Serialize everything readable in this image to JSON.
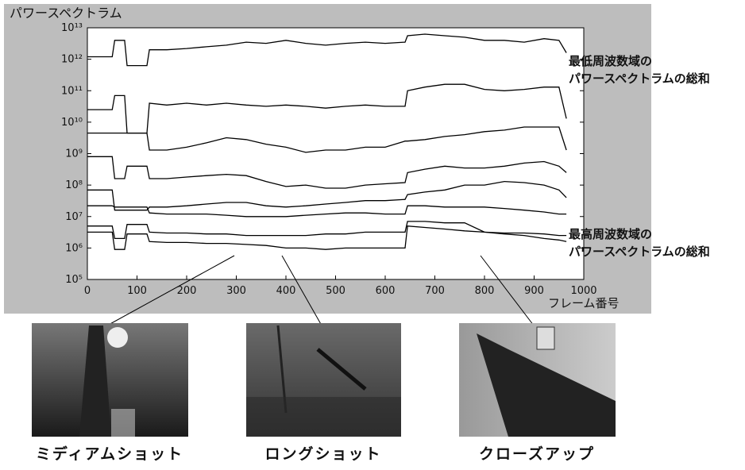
{
  "chart_data": {
    "type": "line",
    "title": "パワースペクトラム",
    "x_label": "フレーム番号",
    "log_scale": true,
    "xlim": [
      0,
      1000
    ],
    "ylim": [
      100000.0,
      10000000000000.0
    ],
    "xticks": [
      0,
      100,
      200,
      300,
      400,
      500,
      600,
      700,
      800,
      900,
      1000
    ],
    "yticks": [
      {
        "value": 100000.0,
        "label": "10⁵"
      },
      {
        "value": 1000000.0,
        "label": "10⁶"
      },
      {
        "value": 10000000.0,
        "label": "10⁷"
      },
      {
        "value": 100000000.0,
        "label": "10⁸"
      },
      {
        "value": 1000000000.0,
        "label": "10⁹"
      },
      {
        "value": 10000000000.0,
        "label": "10¹⁰"
      },
      {
        "value": 100000000000.0,
        "label": "10¹¹"
      },
      {
        "value": 1000000000000.0,
        "label": "10¹²"
      },
      {
        "value": 10000000000000.0,
        "label": "10¹³"
      }
    ],
    "x": [
      0,
      50,
      55,
      75,
      80,
      120,
      125,
      160,
      200,
      240,
      280,
      320,
      360,
      400,
      440,
      480,
      520,
      560,
      600,
      640,
      645,
      680,
      720,
      760,
      800,
      840,
      880,
      920,
      950,
      965
    ],
    "series": [
      {
        "color": "#000",
        "values": [
          1200000000000.0,
          1200000000000.0,
          4000000000000.0,
          4000000000000.0,
          630000000000.0,
          630000000000.0,
          2000000000000.0,
          2000000000000.0,
          2200000000000.0,
          2500000000000.0,
          2800000000000.0,
          3500000000000.0,
          3200000000000.0,
          4000000000000.0,
          3200000000000.0,
          2800000000000.0,
          3200000000000.0,
          3500000000000.0,
          3200000000000.0,
          3500000000000.0,
          5600000000000.0,
          6300000000000.0,
          5600000000000.0,
          5000000000000.0,
          4000000000000.0,
          4000000000000.0,
          3500000000000.0,
          4500000000000.0,
          4000000000000.0,
          1600000000000.0
        ]
      },
      {
        "color": "#000",
        "values": [
          25000000000.0,
          25000000000.0,
          70000000000.0,
          70000000000.0,
          4500000000.0,
          4500000000.0,
          40000000000.0,
          35000000000.0,
          40000000000.0,
          35000000000.0,
          40000000000.0,
          35000000000.0,
          32000000000.0,
          35000000000.0,
          32000000000.0,
          28000000000.0,
          32000000000.0,
          35000000000.0,
          32000000000.0,
          32000000000.0,
          100000000000.0,
          130000000000.0,
          160000000000.0,
          160000000000.0,
          110000000000.0,
          100000000000.0,
          110000000000.0,
          130000000000.0,
          130000000000.0,
          13000000000.0
        ]
      },
      {
        "color": "#000",
        "values": [
          4500000000.0,
          4500000000.0,
          4500000000.0,
          4500000000.0,
          4500000000.0,
          4500000000.0,
          1300000000.0,
          1300000000.0,
          1600000000.0,
          2200000000.0,
          3200000000.0,
          2800000000.0,
          2000000000.0,
          1600000000.0,
          1100000000.0,
          1300000000.0,
          1300000000.0,
          1600000000.0,
          1600000000.0,
          2500000000.0,
          2500000000.0,
          2800000000.0,
          3500000000.0,
          4000000000.0,
          5000000000.0,
          5600000000.0,
          7000000000.0,
          7000000000.0,
          7000000000.0,
          1300000000.0
        ]
      },
      {
        "color": "#000",
        "values": [
          800000000.0,
          800000000.0,
          160000000.0,
          160000000.0,
          400000000.0,
          400000000.0,
          160000000.0,
          160000000.0,
          180000000.0,
          200000000.0,
          220000000.0,
          200000000.0,
          130000000.0,
          90000000.0,
          100000000.0,
          80000000.0,
          80000000.0,
          100000000.0,
          110000000.0,
          120000000.0,
          250000000.0,
          320000000.0,
          400000000.0,
          350000000.0,
          350000000.0,
          400000000.0,
          500000000.0,
          560000000.0,
          400000000.0,
          250000000.0
        ]
      },
      {
        "color": "#000",
        "values": [
          70000000.0,
          70000000.0,
          16000000.0,
          16000000.0,
          16000000.0,
          16000000.0,
          20000000.0,
          20000000.0,
          22000000.0,
          25000000.0,
          28000000.0,
          28000000.0,
          22000000.0,
          20000000.0,
          22000000.0,
          25000000.0,
          28000000.0,
          32000000.0,
          32000000.0,
          35000000.0,
          50000000.0,
          60000000.0,
          70000000.0,
          100000000.0,
          100000000.0,
          130000000.0,
          120000000.0,
          100000000.0,
          70000000.0,
          40000000.0
        ]
      },
      {
        "color": "#000",
        "values": [
          22000000.0,
          22000000.0,
          20000000.0,
          20000000.0,
          20000000.0,
          20000000.0,
          13000000.0,
          12000000.0,
          12000000.0,
          12000000.0,
          11000000.0,
          10000000.0,
          10000000.0,
          10000000.0,
          11000000.0,
          12000000.0,
          13000000.0,
          13000000.0,
          12000000.0,
          12000000.0,
          22000000.0,
          22000000.0,
          20000000.0,
          20000000.0,
          20000000.0,
          18000000.0,
          16000000.0,
          14000000.0,
          12000000.0,
          12000000.0
        ]
      },
      {
        "color": "#000",
        "values": [
          5000000.0,
          5000000.0,
          2000000.0,
          2000000.0,
          5600000.0,
          5600000.0,
          3200000.0,
          3000000.0,
          3000000.0,
          2800000.0,
          2800000.0,
          2500000.0,
          2500000.0,
          2500000.0,
          2500000.0,
          2800000.0,
          2800000.0,
          3200000.0,
          3200000.0,
          3200000.0,
          7000000.0,
          7000000.0,
          6300000.0,
          6300000.0,
          3200000.0,
          3000000.0,
          3000000.0,
          2800000.0,
          2500000.0,
          2500000.0
        ]
      },
      {
        "color": "#000",
        "values": [
          3200000.0,
          3200000.0,
          900000.0,
          900000.0,
          2800000.0,
          2800000.0,
          1600000.0,
          1500000.0,
          1500000.0,
          1400000.0,
          1400000.0,
          1300000.0,
          1200000.0,
          1000000.0,
          1000000.0,
          900000.0,
          1000000.0,
          1000000.0,
          1000000.0,
          1000000.0,
          5000000.0,
          4500000.0,
          4000000.0,
          3500000.0,
          3200000.0,
          2800000.0,
          2500000.0,
          2000000.0,
          1800000.0,
          1600000.0
        ]
      }
    ],
    "annotations": [
      [
        "最低周波数域の",
        "パワースペクトラムの総和"
      ],
      [
        "最高周波数域の",
        "パワースペクトラムの総和"
      ]
    ],
    "shot_labels": [
      "ミディアムショット",
      "ロングショット",
      "クローズアップ"
    ]
  }
}
